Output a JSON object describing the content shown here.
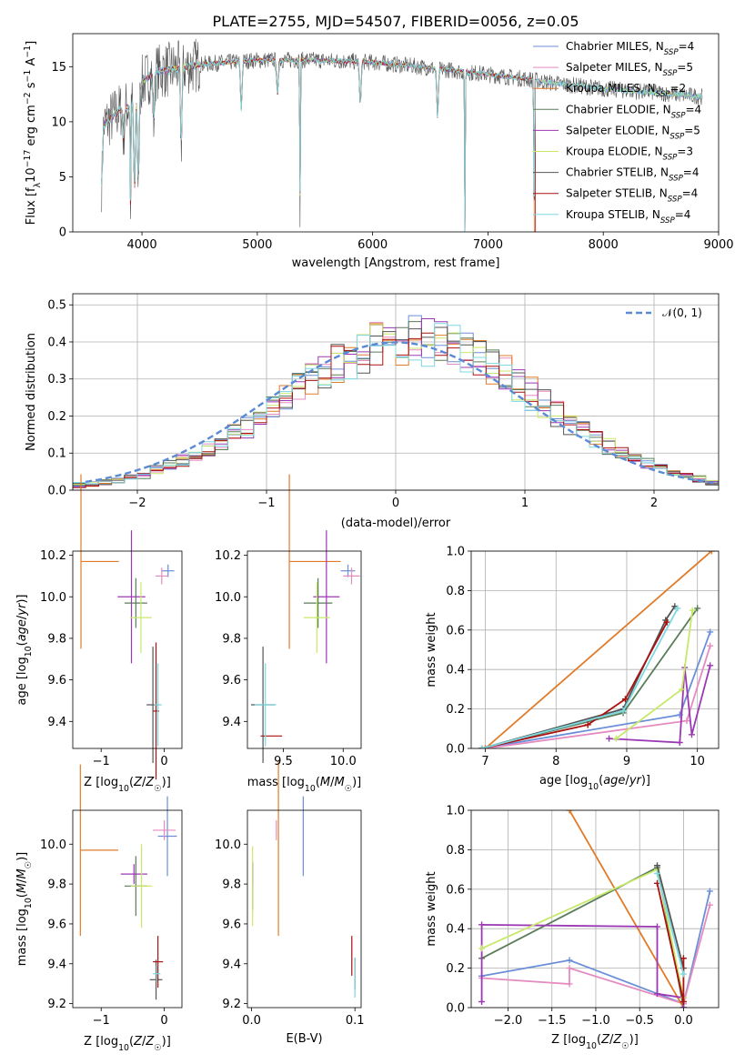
{
  "colors": [
    "#6b8ed8",
    "#e58bc0",
    "#e07b2a",
    "#5a7d5a",
    "#9b38b3",
    "#c8e86a",
    "#555555",
    "#aa1111",
    "#7dd8e0"
  ],
  "chart_data": [
    {
      "id": "spectrum",
      "type": "line",
      "title": "PLATE=2755, MJD=54507, FIBERID=0056, z=0.05",
      "xlabel": "wavelength [Angstrom, rest frame]",
      "ylabel": "Flux [fλ10⁻¹⁷ erg cm⁻² s⁻¹ A⁻¹]",
      "xlim": [
        3400,
        9000
      ],
      "ylim": [
        0,
        18
      ],
      "xticks": [
        4000,
        5000,
        6000,
        7000,
        8000,
        9000
      ],
      "yticks": [
        0,
        5,
        10,
        15
      ],
      "legend_position": "top-right",
      "legend": [
        "Chabrier MILES, N_SSP=4",
        "Salpeter MILES, N_SSP=5",
        "Kroupa MILES, N_SSP=2",
        "Chabrier ELODIE, N_SSP=4",
        "Salpeter ELODIE, N_SSP=5",
        "Kroupa ELODIE, N_SSP=3",
        "Chabrier STELIB, N_SSP=4",
        "Salpeter STELIB, N_SSP=4",
        "Kroupa STELIB, N_SSP=4"
      ],
      "continuum": {
        "x": [
          3650,
          3800,
          3900,
          4000,
          4100,
          4300,
          4500,
          5000,
          5500,
          6000,
          6500,
          7000,
          7400,
          7500,
          8000,
          8500,
          8850
        ],
        "y": [
          9.5,
          11,
          11.5,
          13.5,
          14.5,
          14.8,
          15.2,
          15.6,
          15.6,
          15.4,
          14.9,
          14.3,
          13.8,
          13.6,
          13.0,
          12.6,
          12.3
        ]
      },
      "features": [
        {
          "x": 3650,
          "y": 4.4
        },
        {
          "x": 3840,
          "y": 8.5
        },
        {
          "x": 3900,
          "y": 0
        },
        {
          "x": 3935,
          "y": 3.8
        },
        {
          "x": 3968,
          "y": 4.3
        },
        {
          "x": 4102,
          "y": 10.0
        },
        {
          "x": 4340,
          "y": 8.0
        },
        {
          "x": 4861,
          "y": 11.2
        },
        {
          "x": 5175,
          "y": 12.5
        },
        {
          "x": 5370,
          "y": 0
        },
        {
          "x": 5893,
          "y": 11.5
        },
        {
          "x": 6563,
          "y": 10.5
        },
        {
          "x": 6800,
          "y": 0
        },
        {
          "x": 7400,
          "y": 0
        }
      ]
    },
    {
      "id": "residuals",
      "type": "histogram",
      "xlabel": "(data-model)/error",
      "ylabel": "Normed distribution",
      "xlim": [
        -2.5,
        2.5
      ],
      "ylim": [
        0,
        0.53
      ],
      "xticks": [
        -2,
        -1,
        0,
        1,
        2
      ],
      "yticks": [
        0,
        0.1,
        0.2,
        0.3,
        0.4,
        0.5
      ],
      "grid": true,
      "bin_width": 0.1,
      "curve_label": "𝒩(0, 1)",
      "legend_position": "top-right"
    },
    {
      "id": "age-vs-Z",
      "type": "errorbar",
      "xlabel": "Z [log₁₀(Z/Z☉)]",
      "ylabel": "age  [log₁₀(age/yr)]",
      "xlim": [
        -1.45,
        0.28
      ],
      "ylim": [
        9.27,
        10.22
      ],
      "xticks": [
        -1,
        0
      ],
      "yticks": [
        9.4,
        9.6,
        9.8,
        10.0,
        10.2
      ],
      "points": [
        {
          "s": 0,
          "x": 0.06,
          "y": 10.125,
          "xerr": 0.1,
          "yerr": 0.03
        },
        {
          "s": 1,
          "x": -0.04,
          "y": 10.1,
          "xerr": 0.1,
          "yerr": 0.04
        },
        {
          "s": 2,
          "x": -1.32,
          "y": 10.17,
          "xerr": 0.0,
          "yerr": 0.42,
          "xr": [
            -1.32,
            -0.72
          ]
        },
        {
          "s": 3,
          "x": -0.45,
          "y": 9.97,
          "xerr": 0.18,
          "yerr": 0.12
        },
        {
          "s": 4,
          "x": -0.52,
          "y": 10.0,
          "xerr": 0.22,
          "yerr": 0.32
        },
        {
          "s": 5,
          "x": -0.37,
          "y": 9.9,
          "xerr": 0.17,
          "yerr": 0.17
        },
        {
          "s": 6,
          "x": -0.18,
          "y": 9.48,
          "xerr": 0.1,
          "yerr": 0.28
        },
        {
          "s": 7,
          "x": -0.13,
          "y": 9.45,
          "xerr": 0.05,
          "yerr": 0.33
        },
        {
          "s": 8,
          "x": -0.1,
          "y": 9.48,
          "xerr": 0.06,
          "yerr": 0.2
        }
      ]
    },
    {
      "id": "age-vs-mass",
      "type": "errorbar",
      "xlabel": "mass [log₁₀(M/M☉)]",
      "ylabel": "",
      "xlim": [
        9.2,
        10.15
      ],
      "ylim": [
        9.27,
        10.22
      ],
      "xticks": [
        9.5,
        10.0
      ],
      "yticks": [
        9.4,
        9.6,
        9.8,
        10.0,
        10.2
      ],
      "points": [
        {
          "s": 0,
          "x": 10.04,
          "y": 10.125,
          "xerr": 0.06,
          "yerr": 0.03
        },
        {
          "s": 1,
          "x": 10.07,
          "y": 10.1,
          "xerr": 0.07,
          "yerr": 0.04
        },
        {
          "s": 2,
          "x": 9.98,
          "y": 10.17,
          "xerr": 0.0,
          "yerr": 0.42,
          "xr": [
            9.55,
            9.98
          ]
        },
        {
          "s": 3,
          "x": 9.79,
          "y": 9.97,
          "xerr": 0.12,
          "yerr": 0.12
        },
        {
          "s": 4,
          "x": 9.86,
          "y": 10.0,
          "xerr": 0.11,
          "yerr": 0.32
        },
        {
          "s": 5,
          "x": 9.78,
          "y": 9.9,
          "xerr": 0.11,
          "yerr": 0.17
        },
        {
          "s": 6,
          "x": 9.33,
          "y": 9.48,
          "xerr": 0.1,
          "yerr": 0.28
        },
        {
          "s": 7,
          "x": 9.4,
          "y": 9.33,
          "xerr": 0.09,
          "yerr": 0.0
        },
        {
          "s": 8,
          "x": 9.35,
          "y": 9.48,
          "xerr": 0.09,
          "yerr": 0.2
        }
      ]
    },
    {
      "id": "weight-vs-age",
      "type": "line",
      "xlabel": "age  [log₁₀(age/yr)]",
      "ylabel": "mass weight",
      "xlim": [
        6.8,
        10.3
      ],
      "ylim": [
        0,
        1
      ],
      "xticks": [
        7,
        8,
        9,
        10
      ],
      "yticks": [
        0,
        0.2,
        0.4,
        0.6,
        0.8,
        1.0
      ],
      "grid": true,
      "series": [
        {
          "s": 0,
          "x": [
            6.95,
            9.75,
            10.18
          ],
          "y": [
            0.0,
            0.17,
            0.59
          ]
        },
        {
          "s": 1,
          "x": [
            7.0,
            9.85,
            10.18
          ],
          "y": [
            0.0,
            0.14,
            0.52
          ]
        },
        {
          "s": 2,
          "x": [
            7.0,
            10.2
          ],
          "y": [
            0.0,
            1.0
          ]
        },
        {
          "s": 3,
          "x": [
            6.95,
            8.95,
            10.0
          ],
          "y": [
            0.0,
            0.18,
            0.71
          ]
        },
        {
          "s": 4,
          "x": [
            8.75,
            9.75,
            9.82,
            9.92,
            10.18
          ],
          "y": [
            0.05,
            0.03,
            0.41,
            0.07,
            0.42
          ]
        },
        {
          "s": 5,
          "x": [
            8.85,
            9.78,
            9.93
          ],
          "y": [
            0.05,
            0.3,
            0.7
          ]
        },
        {
          "s": 6,
          "x": [
            6.95,
            8.95,
            9.55,
            9.68
          ],
          "y": [
            0.0,
            0.2,
            0.65,
            0.72
          ]
        },
        {
          "s": 7,
          "x": [
            6.95,
            8.45,
            8.98,
            9.57
          ],
          "y": [
            0.0,
            0.12,
            0.25,
            0.64
          ]
        },
        {
          "s": 8,
          "x": [
            6.95,
            8.95,
            9.72
          ],
          "y": [
            0.0,
            0.19,
            0.71
          ]
        }
      ]
    },
    {
      "id": "mass-vs-Z",
      "type": "errorbar",
      "xlabel": "Z [log₁₀(Z/Z☉)]",
      "ylabel": "mass [log₁₀(M/M☉)]",
      "xlim": [
        -1.45,
        0.28
      ],
      "ylim": [
        9.18,
        10.17
      ],
      "xticks": [
        -1,
        0
      ],
      "yticks": [
        9.2,
        9.4,
        9.6,
        9.8,
        10.0
      ],
      "points": [
        {
          "s": 0,
          "x": 0.05,
          "y": 10.04,
          "xerr": 0.15,
          "yerr": 0.2
        },
        {
          "s": 1,
          "x": 0.0,
          "y": 10.07,
          "xerr": 0.18,
          "yerr": 0.05
        },
        {
          "s": 2,
          "x": -1.33,
          "y": 9.97,
          "xerr": 0.0,
          "yerr": 0.43,
          "xr": [
            -1.33,
            -0.73
          ]
        },
        {
          "s": 3,
          "x": -0.45,
          "y": 9.79,
          "xerr": 0.18,
          "yerr": 0.15
        },
        {
          "s": 4,
          "x": -0.48,
          "y": 9.85,
          "xerr": 0.21,
          "yerr": 0.05
        },
        {
          "s": 5,
          "x": -0.36,
          "y": 9.79,
          "xerr": 0.17,
          "yerr": 0.21
        },
        {
          "s": 6,
          "x": -0.13,
          "y": 9.32,
          "xerr": 0.1,
          "yerr": 0.1
        },
        {
          "s": 7,
          "x": -0.1,
          "y": 9.41,
          "xerr": 0.08,
          "yerr": 0.13
        },
        {
          "s": 8,
          "x": -0.12,
          "y": 9.35,
          "xerr": 0.06,
          "yerr": 0.04
        }
      ]
    },
    {
      "id": "mass-vs-ebv",
      "type": "errorbar",
      "xlabel": "E(B-V)",
      "ylabel": "",
      "xlim": [
        -0.004,
        0.106
      ],
      "ylim": [
        9.18,
        10.17
      ],
      "xticks": [
        0.0,
        0.1
      ],
      "yticks": [
        9.2,
        9.4,
        9.6,
        9.8,
        10.0
      ],
      "points": [
        {
          "s": 0,
          "x": 0.05,
          "y": 10.04,
          "xerr": 0.0,
          "yerr": 0.2
        },
        {
          "s": 1,
          "x": 0.024,
          "y": 10.07,
          "xerr": 0.0,
          "yerr": 0.05
        },
        {
          "s": 2,
          "x": 0.026,
          "y": 9.98,
          "xerr": 0.0,
          "yerr": 0.44
        },
        {
          "s": 3,
          "x": 0.001,
          "y": 9.79,
          "xerr": 0.0,
          "yerr": 0.12
        },
        {
          "s": 4,
          "x": 0.001,
          "y": 9.85,
          "xerr": 0.0,
          "yerr": 0.05
        },
        {
          "s": 5,
          "x": 0.001,
          "y": 9.79,
          "xerr": 0.0,
          "yerr": 0.2
        },
        {
          "s": 6,
          "x": 0.1,
          "y": 9.35,
          "xerr": 0.0,
          "yerr": 0.08
        },
        {
          "s": 7,
          "x": 0.097,
          "y": 9.44,
          "xerr": 0.0,
          "yerr": 0.1
        },
        {
          "s": 8,
          "x": 0.1,
          "y": 9.33,
          "xerr": 0.0,
          "yerr": 0.1
        }
      ]
    },
    {
      "id": "weight-vs-Z",
      "type": "line",
      "xlabel": "Z [log₁₀(Z/Z☉)]",
      "ylabel": "mass weight",
      "xlim": [
        -2.42,
        0.4
      ],
      "ylim": [
        0,
        1
      ],
      "xticks": [
        -2.0,
        -1.5,
        -1.0,
        -0.5,
        0.0
      ],
      "yticks": [
        0,
        0.2,
        0.4,
        0.6,
        0.8,
        1.0
      ],
      "grid": true,
      "series": [
        {
          "s": 0,
          "x": [
            -2.3,
            -1.3,
            0.0,
            0.3
          ],
          "y": [
            0.16,
            0.24,
            0.02,
            0.59
          ]
        },
        {
          "s": 1,
          "x": [
            -2.3,
            -1.3,
            -1.3,
            0.0,
            0.3
          ],
          "y": [
            0.15,
            0.12,
            0.2,
            0.02,
            0.52
          ]
        },
        {
          "s": 2,
          "x": [
            -1.3,
            0.0
          ],
          "y": [
            1.0,
            0.0
          ]
        },
        {
          "s": 3,
          "x": [
            -2.3,
            -0.3,
            0.0
          ],
          "y": [
            0.25,
            0.71,
            0.0
          ]
        },
        {
          "s": 4,
          "x": [
            -2.3,
            -2.3,
            -0.3,
            -0.3,
            0.0,
            0.0
          ],
          "y": [
            0.03,
            0.42,
            0.41,
            0.07,
            0.05,
            0.0
          ]
        },
        {
          "s": 5,
          "x": [
            -2.3,
            -0.3,
            0.0
          ],
          "y": [
            0.3,
            0.7,
            0.05
          ]
        },
        {
          "s": 6,
          "x": [
            -0.3,
            0.0
          ],
          "y": [
            0.72,
            0.2
          ]
        },
        {
          "s": 7,
          "x": [
            -0.3,
            0.0,
            0.0
          ],
          "y": [
            0.63,
            0.03,
            0.25
          ]
        },
        {
          "s": 8,
          "x": [
            -0.3,
            0.0
          ],
          "y": [
            0.68,
            0.17
          ]
        }
      ]
    }
  ]
}
